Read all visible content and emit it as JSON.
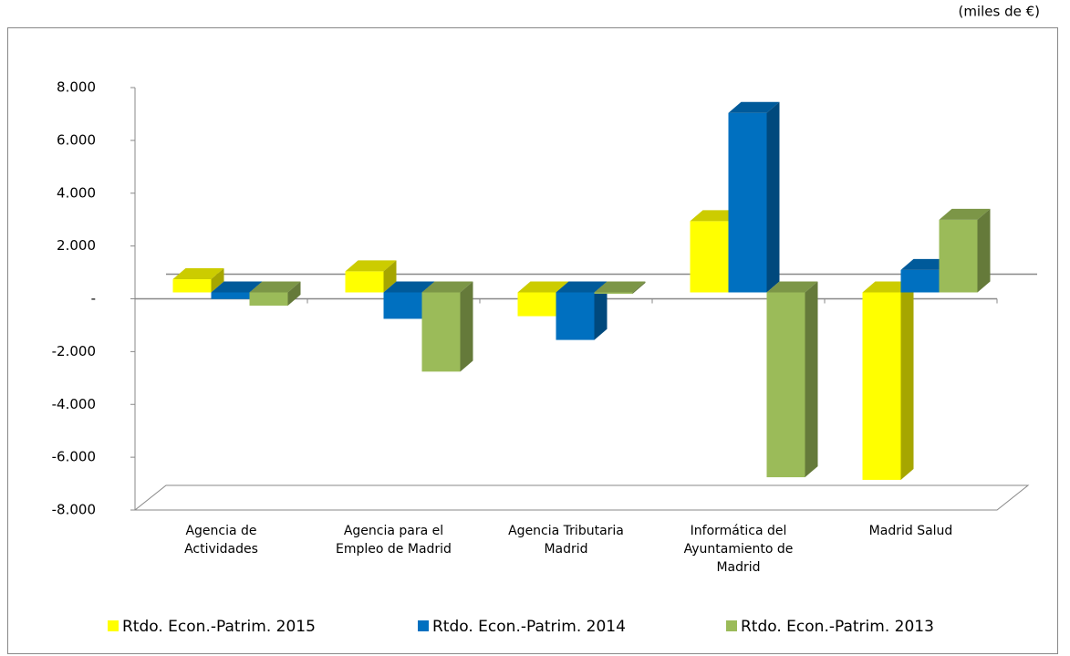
{
  "chart_data": {
    "type": "bar3d",
    "subtitle": "(miles de €)",
    "categories": [
      "Agencia de Actividades",
      "Agencia para el Empleo de Madrid",
      "Agencia Tributaria Madrid",
      "Informática del Ayuntamiento de Madrid",
      "Madrid Salud"
    ],
    "series": [
      {
        "name": "Rtdo. Econ.-Patrim. 2015",
        "color": "#ffff00",
        "values": [
          500,
          800,
          -900,
          2700,
          -7100
        ]
      },
      {
        "name": "Rtdo. Econ.-Patrim. 2014",
        "color": "#0070c0",
        "values": [
          -250,
          -1000,
          -1800,
          6800,
          850
        ]
      },
      {
        "name": "Rtdo. Econ.-Patrim. 2013",
        "color": "#9bbb59",
        "values": [
          -500,
          -3000,
          -50,
          -7000,
          2750
        ]
      }
    ],
    "ylim": [
      -8000,
      8000
    ],
    "yticks": [
      {
        "value": -8000,
        "label": "-8.000"
      },
      {
        "value": -6000,
        "label": "-6.000"
      },
      {
        "value": -4000,
        "label": "-4.000"
      },
      {
        "value": -2000,
        "label": "-2.000"
      },
      {
        "value": 0,
        "label": "-"
      },
      {
        "value": 2000,
        "label": "2.000"
      },
      {
        "value": 4000,
        "label": "4.000"
      },
      {
        "value": 6000,
        "label": "6.000"
      },
      {
        "value": 8000,
        "label": "8.000"
      }
    ],
    "legend": "bottom"
  }
}
